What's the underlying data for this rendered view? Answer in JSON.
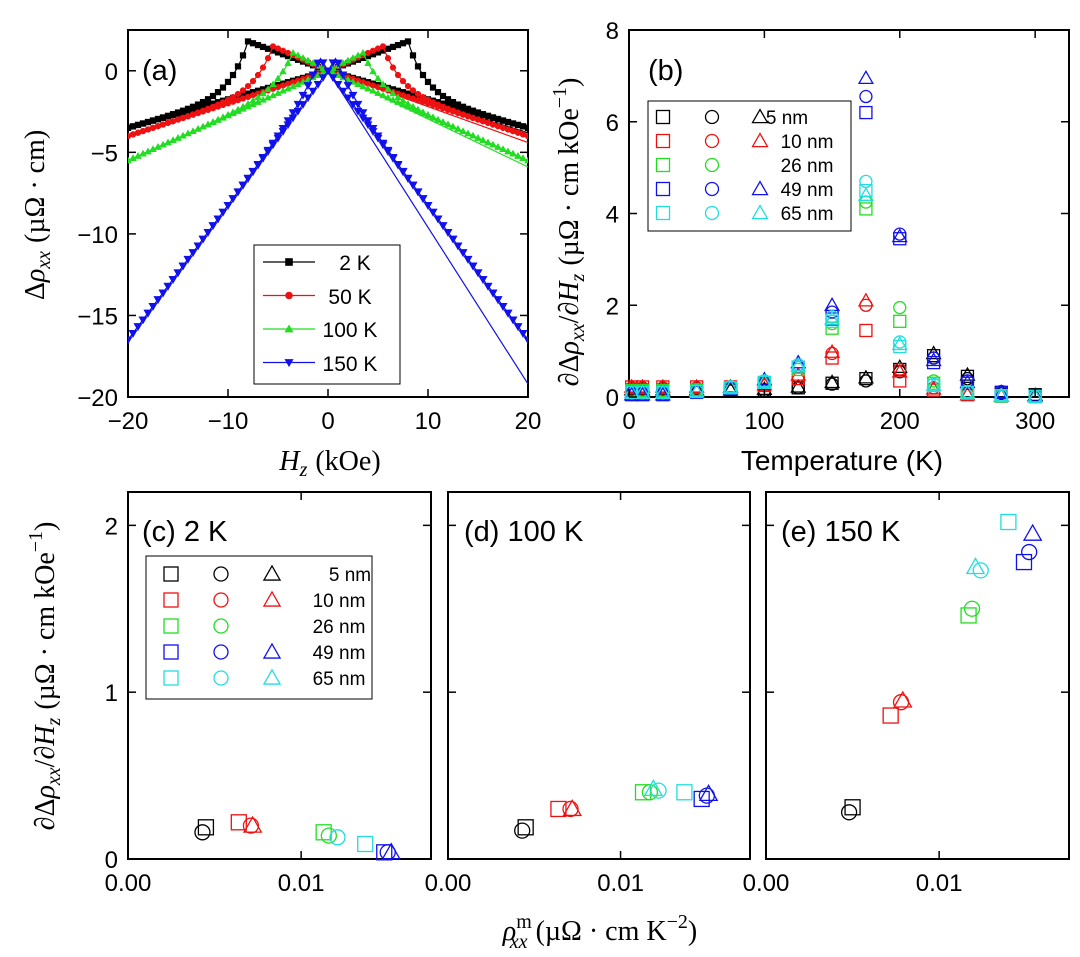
{
  "colors": {
    "black": "#000000",
    "red": "#ee1111",
    "green": "#22dd22",
    "blue": "#1111ee",
    "cyan": "#22dddd"
  },
  "chart_data": [
    {
      "id": "a",
      "type": "line",
      "panel_label": "(a)",
      "xlabel_var": "H",
      "xlabel_sub": "z",
      "xlabel_unit": "(kOe)",
      "ylabel_pre": "Δ",
      "ylabel_var": "ρ",
      "ylabel_sub": "xx",
      "ylabel_unit": "(µΩ · cm)",
      "xlim": [
        -20,
        20
      ],
      "ylim": [
        -20,
        2.5
      ],
      "xticks": [
        -20,
        -10,
        0,
        10,
        20
      ],
      "xtick_labels": [
        "−20",
        "−10",
        "0",
        "10",
        "20"
      ],
      "yticks": [
        0,
        -5,
        -10,
        -15,
        -20
      ],
      "ytick_labels": [
        "0",
        "−5",
        "−10",
        "−15",
        "−20"
      ],
      "legend_position": "lower-right",
      "series": [
        {
          "name": "2 K",
          "color": "black",
          "marker": "square",
          "peak_field": 8,
          "peak_value": 1.8,
          "end_value": -3.5,
          "end_value_fit": -3.8
        },
        {
          "name": "50 K",
          "color": "red",
          "marker": "circle",
          "peak_field": 5.5,
          "peak_value": 1.5,
          "end_value": -4.0,
          "end_value_fit": -4.4
        },
        {
          "name": "100 K",
          "color": "green",
          "marker": "triangle-up",
          "peak_field": 3.5,
          "peak_value": 1.1,
          "end_value": -5.5,
          "end_value_fit": -5.9
        },
        {
          "name": "150 K",
          "color": "blue",
          "marker": "triangle-down",
          "peak_field": 0.8,
          "peak_value": 0.8,
          "end_value": -16.5,
          "end_value_fit": -19.2
        }
      ]
    },
    {
      "id": "b",
      "type": "scatter",
      "panel_label": "(b)",
      "xlabel": "Temperature (K)",
      "ylabel_pre": "∂Δ",
      "ylabel_var": "ρ",
      "ylabel_sub": "xx",
      "ylabel_mid": "/∂",
      "ylabel_var2": "H",
      "ylabel_sub2": "z",
      "ylabel_unit": "(µΩ · cm kOe",
      "ylabel_sup": "−1",
      "ylabel_close": ")",
      "xlim": [
        0,
        325
      ],
      "ylim": [
        0,
        8
      ],
      "xticks": [
        0,
        100,
        200,
        300
      ],
      "xtick_labels": [
        "0",
        "100",
        "200",
        "300"
      ],
      "yticks": [
        0,
        2,
        4,
        6,
        8
      ],
      "ytick_labels": [
        "0",
        "2",
        "4",
        "6",
        "8"
      ],
      "legend_position": "top-left",
      "legend": [
        {
          "name": "5 nm",
          "color": "black",
          "markers": [
            "square",
            "circle",
            "triangle"
          ]
        },
        {
          "name": "10 nm",
          "color": "red",
          "markers": [
            "square",
            "circle",
            "triangle"
          ]
        },
        {
          "name": "26 nm",
          "color": "green",
          "markers": [
            "square",
            "circle"
          ]
        },
        {
          "name": "49 nm",
          "color": "blue",
          "markers": [
            "square",
            "circle",
            "triangle"
          ]
        },
        {
          "name": "65 nm",
          "color": "cyan",
          "markers": [
            "square",
            "circle",
            "triangle"
          ]
        }
      ],
      "points": [
        {
          "color": "black",
          "marker": "square",
          "T": [
            2,
            10,
            25,
            50,
            75,
            100,
            125,
            150,
            175,
            200,
            225,
            250,
            275,
            300
          ],
          "v": [
            0.15,
            0.15,
            0.15,
            0.15,
            0.15,
            0.15,
            0.2,
            0.3,
            0.4,
            0.6,
            0.9,
            0.45,
            0.1,
            0.05
          ]
        },
        {
          "color": "black",
          "marker": "circle",
          "T": [
            2,
            10,
            25,
            50,
            75,
            100,
            125,
            150,
            175,
            200,
            225,
            250,
            275,
            300
          ],
          "v": [
            0.12,
            0.12,
            0.12,
            0.12,
            0.13,
            0.14,
            0.2,
            0.28,
            0.35,
            0.55,
            0.85,
            0.4,
            0.08,
            0.03
          ]
        },
        {
          "color": "black",
          "marker": "triangle",
          "T": [
            2,
            10,
            25,
            50,
            75,
            100,
            125,
            150,
            175,
            200,
            225,
            250,
            275,
            300
          ],
          "v": [
            0.16,
            0.16,
            0.16,
            0.16,
            0.16,
            0.17,
            0.22,
            0.32,
            0.42,
            0.65,
            0.95,
            0.48,
            0.1,
            0.04
          ]
        },
        {
          "color": "red",
          "marker": "square",
          "T": [
            2,
            10,
            25,
            50,
            75,
            100,
            125,
            150,
            175,
            200,
            225,
            250,
            275,
            300
          ],
          "v": [
            0.22,
            0.22,
            0.22,
            0.22,
            0.22,
            0.25,
            0.4,
            0.85,
            1.45,
            0.35,
            0.15,
            0.05,
            0.02,
            0.01
          ]
        },
        {
          "color": "red",
          "marker": "circle",
          "T": [
            2,
            10,
            25,
            50,
            75,
            100,
            125,
            150,
            175,
            200,
            225,
            250,
            275,
            300
          ],
          "v": [
            0.2,
            0.2,
            0.2,
            0.2,
            0.2,
            0.25,
            0.45,
            0.95,
            2.0,
            0.6,
            0.2,
            0.06,
            0.02,
            0.01
          ]
        },
        {
          "color": "red",
          "marker": "triangle",
          "T": [
            2,
            10,
            25,
            50,
            75,
            100,
            125,
            150,
            175,
            200,
            225,
            250,
            275,
            300
          ],
          "v": [
            0.22,
            0.22,
            0.22,
            0.22,
            0.22,
            0.27,
            0.48,
            0.98,
            2.1,
            0.55,
            0.18,
            0.05,
            0.02,
            0.01
          ]
        },
        {
          "color": "green",
          "marker": "square",
          "T": [
            2,
            10,
            25,
            50,
            75,
            100,
            125,
            150,
            175,
            200,
            225,
            250,
            275,
            300
          ],
          "v": [
            0.14,
            0.14,
            0.14,
            0.15,
            0.2,
            0.3,
            0.6,
            1.5,
            4.1,
            1.65,
            0.3,
            0.08,
            0.02,
            0.01
          ]
        },
        {
          "color": "green",
          "marker": "circle",
          "T": [
            2,
            10,
            25,
            50,
            75,
            100,
            125,
            150,
            175,
            200,
            225,
            250,
            275,
            300
          ],
          "v": [
            0.15,
            0.15,
            0.15,
            0.16,
            0.22,
            0.32,
            0.65,
            1.6,
            4.25,
            1.95,
            0.35,
            0.1,
            0.02,
            0.01
          ]
        },
        {
          "color": "blue",
          "marker": "square",
          "T": [
            2,
            10,
            25,
            50,
            75,
            100,
            125,
            150,
            175,
            200,
            225,
            250,
            275,
            300
          ],
          "v": [
            0.05,
            0.05,
            0.05,
            0.1,
            0.18,
            0.3,
            0.65,
            1.7,
            6.2,
            3.45,
            0.75,
            0.3,
            0.1,
            0.02
          ]
        },
        {
          "color": "blue",
          "marker": "circle",
          "T": [
            2,
            10,
            25,
            50,
            75,
            100,
            125,
            150,
            175,
            200,
            225,
            250,
            275,
            300
          ],
          "v": [
            0.06,
            0.06,
            0.06,
            0.12,
            0.2,
            0.35,
            0.7,
            1.85,
            6.55,
            3.55,
            0.85,
            0.35,
            0.12,
            0.03
          ]
        },
        {
          "color": "blue",
          "marker": "triangle",
          "T": [
            2,
            10,
            25,
            50,
            75,
            100,
            125,
            150,
            175,
            200,
            225,
            250,
            275,
            300
          ],
          "v": [
            0.05,
            0.05,
            0.05,
            0.12,
            0.22,
            0.38,
            0.75,
            2.0,
            6.95,
            3.5,
            0.8,
            0.32,
            0.1,
            0.02
          ]
        },
        {
          "color": "cyan",
          "marker": "square",
          "T": [
            2,
            10,
            25,
            50,
            75,
            100,
            125,
            150,
            175,
            200,
            225,
            250,
            275,
            300
          ],
          "v": [
            0.1,
            0.1,
            0.1,
            0.12,
            0.2,
            0.32,
            0.65,
            1.65,
            4.5,
            1.1,
            0.25,
            0.1,
            0.03,
            0.01
          ]
        },
        {
          "color": "cyan",
          "marker": "circle",
          "T": [
            2,
            10,
            25,
            50,
            75,
            100,
            125,
            150,
            175,
            200,
            225,
            250,
            275,
            300
          ],
          "v": [
            0.11,
            0.11,
            0.11,
            0.13,
            0.22,
            0.35,
            0.7,
            1.75,
            4.7,
            1.2,
            0.28,
            0.12,
            0.03,
            0.01
          ]
        },
        {
          "color": "cyan",
          "marker": "triangle",
          "T": [
            2,
            10,
            25,
            50,
            75,
            100,
            125,
            150,
            175,
            200,
            225,
            250,
            275,
            300
          ],
          "v": [
            0.1,
            0.1,
            0.1,
            0.12,
            0.21,
            0.33,
            0.68,
            1.7,
            4.4,
            1.15,
            0.26,
            0.1,
            0.03,
            0.01
          ]
        }
      ]
    },
    {
      "id": "c",
      "type": "scatter",
      "panel_label": "(c) 2 K",
      "xlim": [
        0,
        0.0175
      ],
      "ylim": [
        0,
        2.2
      ],
      "xticks": [
        0,
        0.01
      ],
      "xtick_labels": [
        "0.00",
        "0.01"
      ],
      "yticks": [
        0,
        1,
        2
      ],
      "ytick_labels": [
        "0",
        "1",
        "2"
      ],
      "legend_position": "top-left",
      "legend": [
        {
          "name": "5 nm",
          "color": "black",
          "markers": [
            "square",
            "circle",
            "triangle"
          ]
        },
        {
          "name": "10 nm",
          "color": "red",
          "markers": [
            "square",
            "circle",
            "triangle"
          ]
        },
        {
          "name": "26 nm",
          "color": "green",
          "markers": [
            "square",
            "circle"
          ]
        },
        {
          "name": "49 nm",
          "color": "blue",
          "markers": [
            "square",
            "circle",
            "triangle"
          ]
        },
        {
          "name": "65 nm",
          "color": "cyan",
          "markers": [
            "square",
            "circle",
            "triangle"
          ]
        }
      ],
      "points": [
        {
          "color": "black",
          "marker": "square",
          "x": 0.0045,
          "y": 0.19
        },
        {
          "color": "black",
          "marker": "circle",
          "x": 0.0043,
          "y": 0.16
        },
        {
          "color": "red",
          "marker": "square",
          "x": 0.0064,
          "y": 0.22
        },
        {
          "color": "red",
          "marker": "circle",
          "x": 0.0071,
          "y": 0.2
        },
        {
          "color": "red",
          "marker": "triangle",
          "x": 0.0072,
          "y": 0.2
        },
        {
          "color": "green",
          "marker": "square",
          "x": 0.0113,
          "y": 0.16
        },
        {
          "color": "green",
          "marker": "circle",
          "x": 0.0116,
          "y": 0.14
        },
        {
          "color": "cyan",
          "marker": "circle",
          "x": 0.0121,
          "y": 0.13
        },
        {
          "color": "cyan",
          "marker": "square",
          "x": 0.0137,
          "y": 0.09
        },
        {
          "color": "blue",
          "marker": "square",
          "x": 0.0148,
          "y": 0.04
        },
        {
          "color": "blue",
          "marker": "circle",
          "x": 0.015,
          "y": 0.04
        },
        {
          "color": "blue",
          "marker": "triangle",
          "x": 0.0152,
          "y": 0.04
        }
      ]
    },
    {
      "id": "d",
      "type": "scatter",
      "panel_label": "(d) 100 K",
      "xlim": [
        0,
        0.0175
      ],
      "ylim": [
        0,
        2.2
      ],
      "xticks": [
        0,
        0.01
      ],
      "xtick_labels": [
        "0.00",
        "0.01"
      ],
      "xlabel_var": "ρ",
      "xlabel_sup": "m",
      "xlabel_sub": "xx",
      "xlabel_unit": "(µΩ · cm K",
      "xlabel_unit_sup": "−2",
      "xlabel_close": ")",
      "points": [
        {
          "color": "black",
          "marker": "square",
          "x": 0.0045,
          "y": 0.19
        },
        {
          "color": "black",
          "marker": "circle",
          "x": 0.0043,
          "y": 0.17
        },
        {
          "color": "red",
          "marker": "square",
          "x": 0.0064,
          "y": 0.3
        },
        {
          "color": "red",
          "marker": "circle",
          "x": 0.0071,
          "y": 0.3
        },
        {
          "color": "red",
          "marker": "triangle",
          "x": 0.0072,
          "y": 0.3
        },
        {
          "color": "green",
          "marker": "square",
          "x": 0.0113,
          "y": 0.4
        },
        {
          "color": "green",
          "marker": "circle",
          "x": 0.0117,
          "y": 0.4
        },
        {
          "color": "cyan",
          "marker": "triangle",
          "x": 0.0119,
          "y": 0.42
        },
        {
          "color": "cyan",
          "marker": "circle",
          "x": 0.0122,
          "y": 0.41
        },
        {
          "color": "cyan",
          "marker": "square",
          "x": 0.0137,
          "y": 0.4
        },
        {
          "color": "blue",
          "marker": "square",
          "x": 0.0147,
          "y": 0.36
        },
        {
          "color": "blue",
          "marker": "circle",
          "x": 0.015,
          "y": 0.38
        },
        {
          "color": "blue",
          "marker": "triangle",
          "x": 0.0151,
          "y": 0.39
        }
      ]
    },
    {
      "id": "e",
      "type": "scatter",
      "panel_label": "(e) 150 K",
      "xlim": [
        0,
        0.0175
      ],
      "ylim": [
        0,
        2.2
      ],
      "xticks": [
        0,
        0.01
      ],
      "xtick_labels": [
        "0.00",
        "0.01"
      ],
      "points": [
        {
          "color": "black",
          "marker": "square",
          "x": 0.005,
          "y": 0.31
        },
        {
          "color": "black",
          "marker": "circle",
          "x": 0.0048,
          "y": 0.28
        },
        {
          "color": "red",
          "marker": "square",
          "x": 0.0072,
          "y": 0.86
        },
        {
          "color": "red",
          "marker": "circle",
          "x": 0.0078,
          "y": 0.94
        },
        {
          "color": "red",
          "marker": "triangle",
          "x": 0.0079,
          "y": 0.95
        },
        {
          "color": "green",
          "marker": "square",
          "x": 0.0117,
          "y": 1.46
        },
        {
          "color": "green",
          "marker": "circle",
          "x": 0.0119,
          "y": 1.5
        },
        {
          "color": "cyan",
          "marker": "triangle",
          "x": 0.0121,
          "y": 1.75
        },
        {
          "color": "cyan",
          "marker": "circle",
          "x": 0.0124,
          "y": 1.73
        },
        {
          "color": "cyan",
          "marker": "square",
          "x": 0.014,
          "y": 2.02
        },
        {
          "color": "blue",
          "marker": "square",
          "x": 0.0149,
          "y": 1.78
        },
        {
          "color": "blue",
          "marker": "circle",
          "x": 0.0152,
          "y": 1.84
        },
        {
          "color": "blue",
          "marker": "triangle",
          "x": 0.0154,
          "y": 1.95
        }
      ]
    }
  ]
}
